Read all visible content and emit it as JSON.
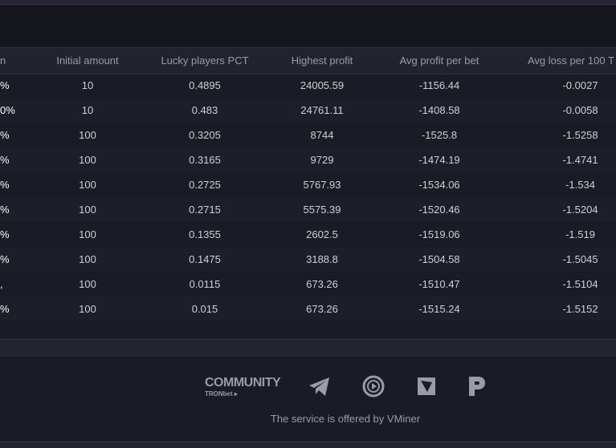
{
  "table": {
    "headers": [
      "n",
      "Initial amount",
      "Lucky players PCT",
      "Highest profit",
      "Avg profit per bet",
      "Avg loss per 100 T"
    ],
    "rows": [
      [
        "%",
        "10",
        "0.4895",
        "24005.59",
        "-1156.44",
        "-0.0027"
      ],
      [
        "0%",
        "10",
        "0.483",
        "24761.11",
        "-1408.58",
        "-0.0058"
      ],
      [
        "%",
        "100",
        "0.3205",
        "8744",
        "-1525.8",
        "-1.5258"
      ],
      [
        "%",
        "100",
        "0.3165",
        "9729",
        "-1474.19",
        "-1.4741"
      ],
      [
        "%",
        "100",
        "0.2725",
        "5767.93",
        "-1534.06",
        "-1.534"
      ],
      [
        "%",
        "100",
        "0.2715",
        "5575.39",
        "-1520.46",
        "-1.5204"
      ],
      [
        "%",
        "100",
        "0.1355",
        "2602.5",
        "-1519.06",
        "-1.519"
      ],
      [
        "%",
        "100",
        "0.1475",
        "3188.8",
        "-1504.58",
        "-1.5045"
      ],
      [
        ",",
        "100",
        "0.0115",
        "673.26",
        "-1510.47",
        "-1.5104"
      ],
      [
        "%",
        "100",
        "0.015",
        "673.26",
        "-1515.24",
        "-1.5152"
      ]
    ]
  },
  "footer": {
    "community_title": "COMMUNITY",
    "community_sub": "TRONbet ▸",
    "credit": "The service is offered by VMiner",
    "icons": [
      "telegram-icon",
      "play-circle-icon",
      "brand-icon",
      "p-logo-icon"
    ]
  },
  "colors": {
    "background": "#1b1b25",
    "header": "#232330",
    "muted": "#9b9ba6"
  }
}
